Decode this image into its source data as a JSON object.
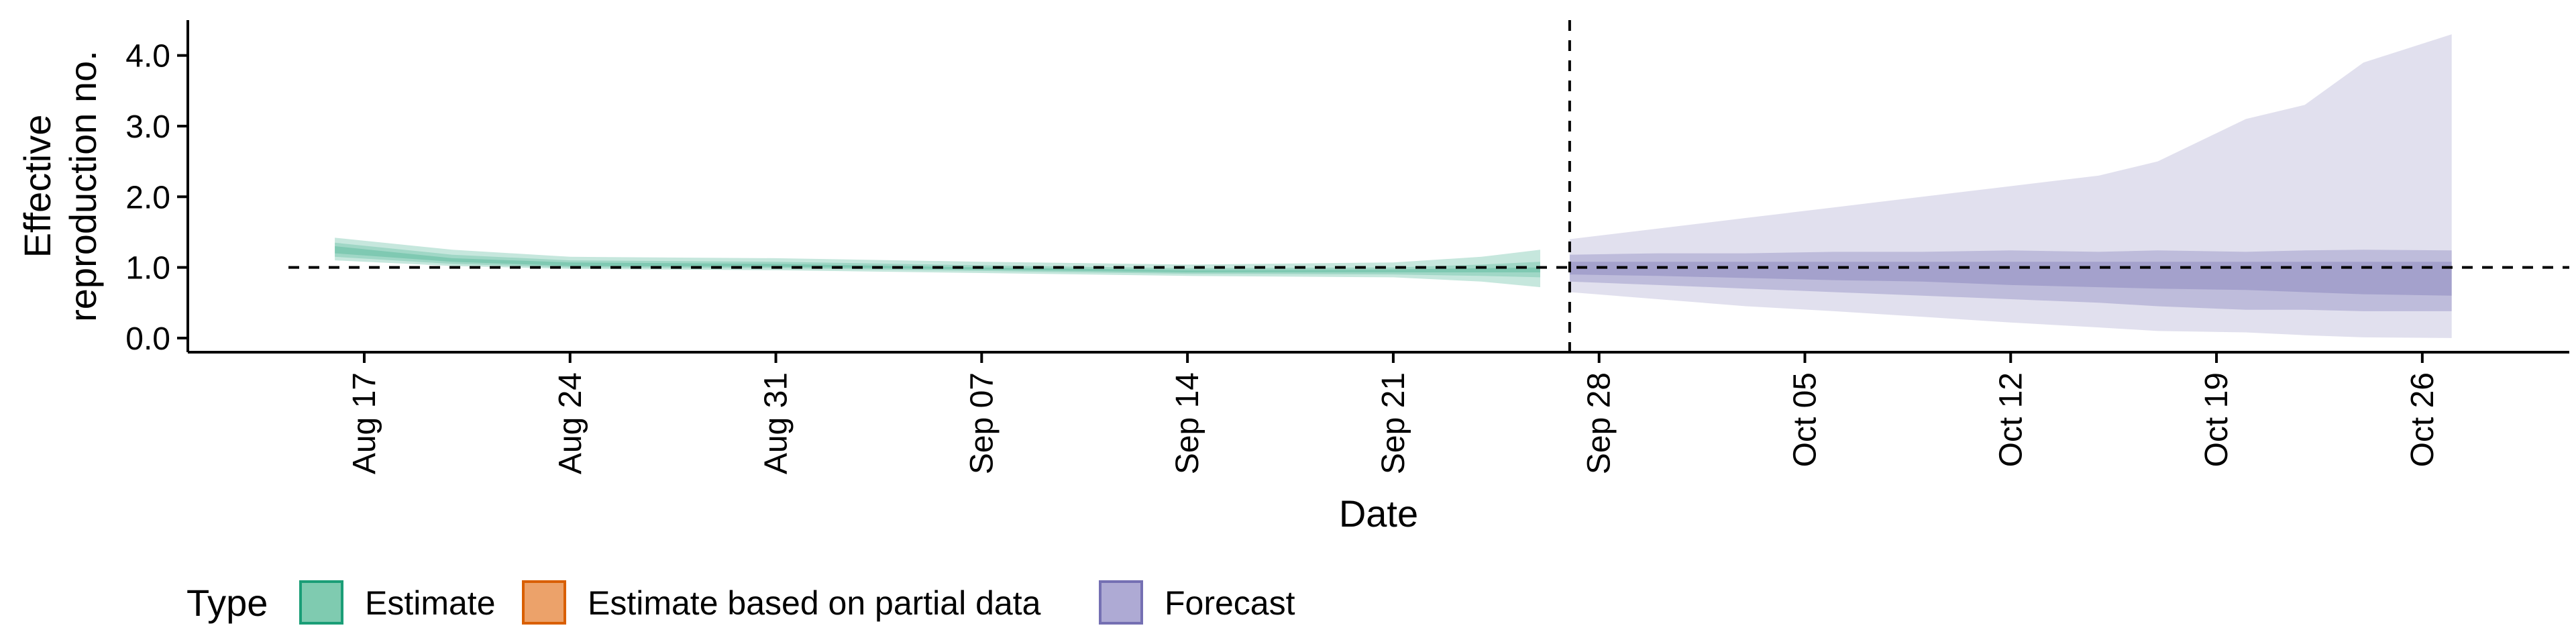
{
  "chart_data": {
    "type": "area",
    "xlabel": "Date",
    "ylabel": [
      "Effective",
      "reproduction no."
    ],
    "ylim": [
      -0.2,
      4.5
    ],
    "yticks": [
      0.0,
      1.0,
      2.0,
      3.0,
      4.0
    ],
    "ytick_labels": [
      "0.0",
      "1.0",
      "2.0",
      "3.0",
      "4.0"
    ],
    "xlim": [
      "2020-08-11",
      "2020-10-31"
    ],
    "xticks": [
      "2020-08-17",
      "2020-08-24",
      "2020-08-31",
      "2020-09-07",
      "2020-09-14",
      "2020-09-21",
      "2020-09-28",
      "2020-10-05",
      "2020-10-12",
      "2020-10-19",
      "2020-10-26"
    ],
    "xtick_labels": [
      "Aug 17",
      "Aug 24",
      "Aug 31",
      "Sep 07",
      "Sep 14",
      "Sep 21",
      "Sep 28",
      "Oct 05",
      "Oct 12",
      "Oct 19",
      "Oct 26"
    ],
    "reference_lines": {
      "horizontal_y": 1.0,
      "vertical_x": "2020-09-27"
    },
    "grid": false,
    "legend": {
      "position": "bottom-left",
      "title": "Type",
      "entries": [
        {
          "label": "Estimate",
          "fill": "#7fcbb0",
          "stroke": "#1b9e77"
        },
        {
          "label": "Estimate based on partial data",
          "fill": "#eca26a",
          "stroke": "#d95f02"
        },
        {
          "label": "Forecast",
          "fill": "#aeaad4",
          "stroke": "#7570b3"
        }
      ]
    },
    "series": [
      {
        "name": "Estimate",
        "color": "#1b9e77",
        "x": [
          "2020-08-16",
          "2020-08-20",
          "2020-08-24",
          "2020-08-31",
          "2020-09-07",
          "2020-09-14",
          "2020-09-21",
          "2020-09-24",
          "2020-09-26"
        ],
        "outer_lower": [
          1.1,
          1.02,
          0.98,
          0.96,
          0.92,
          0.88,
          0.86,
          0.8,
          0.72
        ],
        "outer_upper": [
          1.42,
          1.25,
          1.15,
          1.13,
          1.08,
          1.04,
          1.07,
          1.15,
          1.25
        ],
        "mid_lower": [
          1.15,
          1.05,
          1.0,
          0.99,
          0.95,
          0.91,
          0.9,
          0.88,
          0.86
        ],
        "mid_upper": [
          1.35,
          1.18,
          1.1,
          1.08,
          1.03,
          0.99,
          1.0,
          1.04,
          1.08
        ],
        "inner_lower": [
          1.2,
          1.08,
          1.02,
          1.01,
          0.97,
          0.93,
          0.93,
          0.93,
          0.93
        ],
        "inner_upper": [
          1.3,
          1.13,
          1.07,
          1.05,
          1.0,
          0.96,
          0.97,
          0.99,
          1.0
        ]
      },
      {
        "name": "Forecast",
        "color": "#7570b3",
        "x": [
          "2020-09-27",
          "2020-09-30",
          "2020-10-03",
          "2020-10-06",
          "2020-10-09",
          "2020-10-12",
          "2020-10-15",
          "2020-10-17",
          "2020-10-20",
          "2020-10-22",
          "2020-10-24",
          "2020-10-27"
        ],
        "outer_lower": [
          0.65,
          0.55,
          0.45,
          0.38,
          0.3,
          0.22,
          0.15,
          0.1,
          0.08,
          0.04,
          0.01,
          0.0
        ],
        "outer_upper": [
          1.4,
          1.55,
          1.7,
          1.85,
          2.0,
          2.15,
          2.3,
          2.5,
          3.1,
          3.3,
          3.9,
          4.3
        ],
        "mid_lower": [
          0.8,
          0.75,
          0.7,
          0.65,
          0.6,
          0.55,
          0.5,
          0.45,
          0.4,
          0.4,
          0.38,
          0.38
        ],
        "mid_upper": [
          1.18,
          1.2,
          1.2,
          1.22,
          1.22,
          1.24,
          1.22,
          1.24,
          1.22,
          1.24,
          1.25,
          1.24
        ],
        "inner_lower": [
          0.9,
          0.88,
          0.85,
          0.82,
          0.8,
          0.75,
          0.72,
          0.7,
          0.68,
          0.65,
          0.62,
          0.6
        ],
        "inner_upper": [
          1.08,
          1.08,
          1.08,
          1.08,
          1.08,
          1.08,
          1.08,
          1.08,
          1.08,
          1.08,
          1.08,
          1.08
        ]
      }
    ]
  }
}
